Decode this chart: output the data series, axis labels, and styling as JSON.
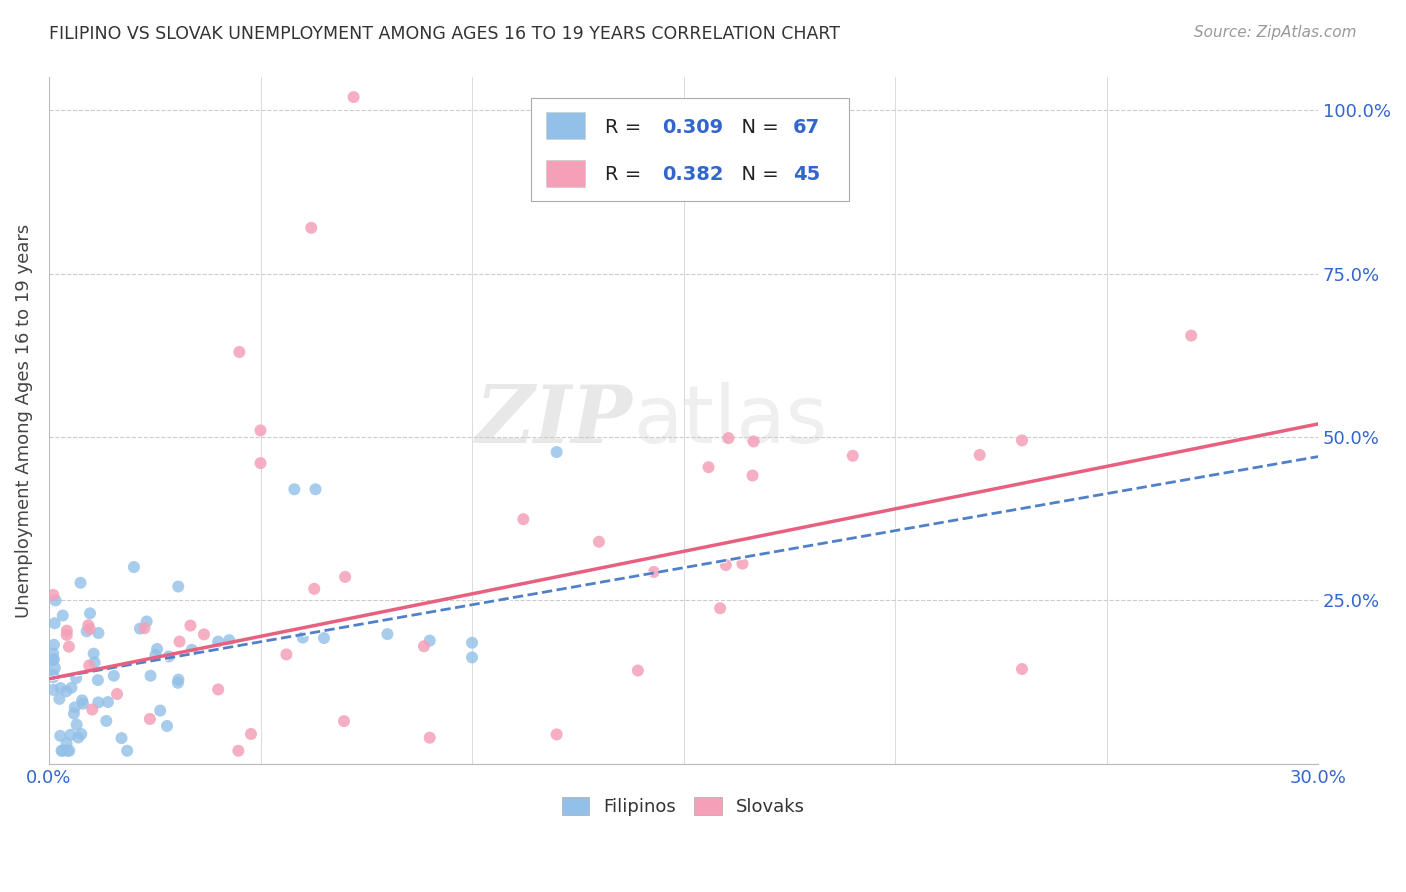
{
  "title": "FILIPINO VS SLOVAK UNEMPLOYMENT AMONG AGES 16 TO 19 YEARS CORRELATION CHART",
  "source": "Source: ZipAtlas.com",
  "ylabel": "Unemployment Among Ages 16 to 19 years",
  "xlim": [
    0.0,
    0.3
  ],
  "ylim": [
    0.0,
    1.05
  ],
  "xtick_vals": [
    0.0,
    0.05,
    0.1,
    0.15,
    0.2,
    0.25,
    0.3
  ],
  "xticklabels": [
    "0.0%",
    "",
    "",
    "",
    "",
    "",
    "30.0%"
  ],
  "ytick_vals": [
    0.25,
    0.5,
    0.75,
    1.0
  ],
  "ytick_labels": [
    "25.0%",
    "50.0%",
    "75.0%",
    "100.0%"
  ],
  "filipino_color": "#92C0E8",
  "slovak_color": "#F4A0B8",
  "trendline_filipino_color": "#5080C8",
  "trendline_slovak_color": "#E86080",
  "text_blue": "#3366CC",
  "text_dark": "#222222",
  "grid_color": "#cccccc",
  "title_color": "#333333",
  "source_color": "#999999",
  "legend_r_filipino": "0.309",
  "legend_n_filipino": "67",
  "legend_r_slovak": "0.382",
  "legend_n_slovak": "45"
}
